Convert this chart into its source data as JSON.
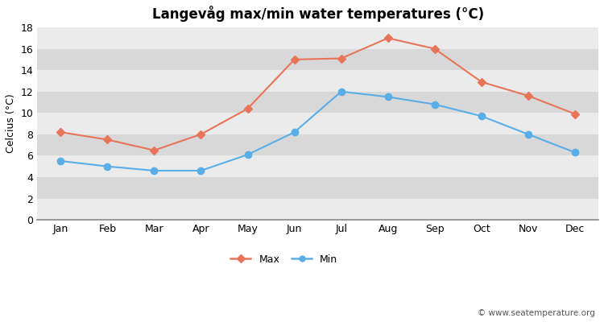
{
  "title": "Langevåg max/min water temperatures (°C)",
  "ylabel": "Celcius (°C)",
  "months": [
    "Jan",
    "Feb",
    "Mar",
    "Apr",
    "May",
    "Jun",
    "Jul",
    "Aug",
    "Sep",
    "Oct",
    "Nov",
    "Dec"
  ],
  "max_values": [
    8.2,
    7.5,
    6.5,
    8.0,
    10.4,
    15.0,
    15.1,
    17.0,
    16.0,
    12.9,
    11.6,
    9.9
  ],
  "min_values": [
    5.5,
    5.0,
    4.6,
    4.6,
    6.1,
    8.2,
    12.0,
    11.5,
    10.8,
    9.7,
    8.0,
    6.3
  ],
  "max_color": "#e8745a",
  "min_color": "#5aaee8",
  "outer_bg": "#ffffff",
  "band_light": "#ebebeb",
  "band_dark": "#d8d8d8",
  "bottom_line_color": "#888888",
  "ylim": [
    0,
    18
  ],
  "yticks": [
    0,
    2,
    4,
    6,
    8,
    10,
    12,
    14,
    16,
    18
  ],
  "watermark": "© www.seatemperature.org",
  "legend_max": "Max",
  "legend_min": "Min",
  "title_fontsize": 12,
  "axis_fontsize": 9,
  "tick_fontsize": 9
}
